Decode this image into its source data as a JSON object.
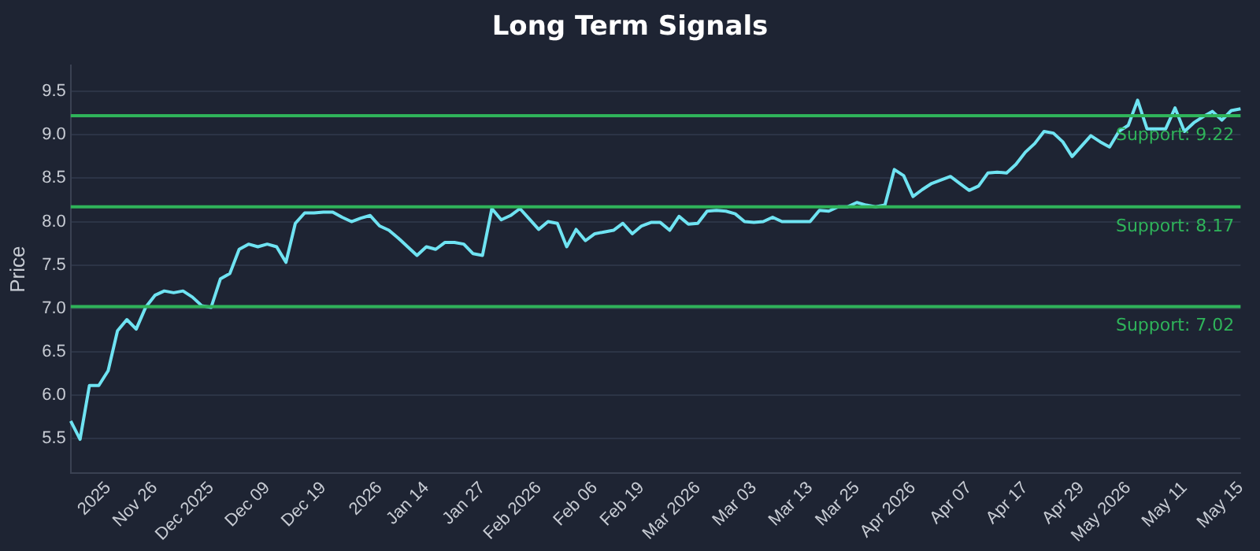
{
  "chart_data": {
    "type": "line",
    "title": "Long Term Signals",
    "ylabel": "Price",
    "categories": [
      null,
      null,
      null,
      null,
      "2025",
      null,
      null,
      null,
      null,
      "Nov 26",
      null,
      null,
      null,
      null,
      null,
      "Dec 2025",
      null,
      null,
      null,
      null,
      null,
      "Dec 09",
      null,
      null,
      null,
      null,
      null,
      "Dec 19",
      null,
      null,
      null,
      null,
      null,
      "2026",
      null,
      null,
      null,
      null,
      "Jan 14",
      null,
      null,
      null,
      null,
      null,
      "Jan 27",
      null,
      null,
      null,
      null,
      null,
      "Feb 2026",
      null,
      null,
      null,
      null,
      null,
      "Feb 06",
      null,
      null,
      null,
      null,
      "Feb 19",
      null,
      null,
      null,
      null,
      null,
      "Mar 2026",
      null,
      null,
      null,
      null,
      null,
      "Mar 03",
      null,
      null,
      null,
      null,
      null,
      "Mar 13",
      null,
      null,
      null,
      null,
      "Mar 25",
      null,
      null,
      null,
      null,
      null,
      "Apr 2026",
      null,
      null,
      null,
      null,
      null,
      "Apr 07",
      null,
      null,
      null,
      null,
      null,
      "Apr 17",
      null,
      null,
      null,
      null,
      null,
      "Apr 29",
      null,
      null,
      null,
      null,
      "May 2026",
      null,
      null,
      null,
      null,
      null,
      "May 11",
      null,
      null,
      null,
      null,
      null,
      "May 15"
    ],
    "series": [
      {
        "color": "#6fe3f2",
        "values": [
          5.7,
          5.49,
          6.11,
          6.11,
          6.28,
          6.74,
          6.87,
          6.76,
          7.01,
          7.15,
          7.2,
          7.18,
          7.2,
          7.13,
          7.03,
          7.01,
          7.34,
          7.4,
          7.68,
          7.74,
          7.71,
          7.74,
          7.71,
          7.53,
          7.98,
          8.1,
          8.1,
          8.11,
          8.11,
          8.05,
          8.0,
          8.04,
          8.07,
          7.95,
          7.9,
          7.81,
          7.71,
          7.61,
          7.71,
          7.68,
          7.76,
          7.76,
          7.74,
          7.63,
          7.61,
          8.15,
          8.02,
          8.07,
          8.15,
          8.03,
          7.91,
          8.0,
          7.98,
          7.71,
          7.91,
          7.78,
          7.86,
          7.88,
          7.9,
          7.98,
          7.86,
          7.95,
          7.99,
          7.99,
          7.9,
          8.06,
          7.97,
          7.98,
          8.12,
          8.13,
          8.12,
          8.09,
          8.0,
          7.99,
          8.0,
          8.05,
          8.0,
          8.0,
          8.0,
          8.0,
          8.13,
          8.12,
          8.17,
          8.17,
          8.22,
          8.19,
          8.17,
          8.19,
          8.6,
          8.53,
          8.29,
          8.37,
          8.44,
          8.48,
          8.52,
          8.44,
          8.36,
          8.41,
          8.56,
          8.57,
          8.56,
          8.66,
          8.8,
          8.9,
          9.04,
          9.02,
          8.92,
          8.75,
          8.87,
          8.99,
          8.92,
          8.86,
          9.04,
          9.11,
          9.4,
          9.07,
          9.07,
          9.07,
          9.31,
          9.04,
          9.14,
          9.21,
          9.27,
          9.17,
          9.28,
          9.3
        ]
      }
    ],
    "ylim": [
      5.1,
      9.8
    ],
    "yticks": [
      5.5,
      {
        "value": 6,
        "label": "6.0"
      },
      6.5,
      {
        "value": 7,
        "label": "7.0"
      },
      7.5,
      {
        "value": 8,
        "label": "8.0"
      },
      8.5,
      {
        "value": 9,
        "label": "9.0"
      },
      9.5
    ],
    "grid": "y",
    "ref_lines": [
      {
        "axis": "y",
        "value": 9.22,
        "label": "Support: 9.22",
        "color": "#2fb35a"
      },
      {
        "axis": "y",
        "value": 8.17,
        "label": "Support: 8.17",
        "color": "#2fb35a"
      },
      {
        "axis": "y",
        "value": 7.02,
        "label": "Support: 7.02",
        "color": "#2fb35a"
      }
    ],
    "legend": false,
    "marker": "none",
    "line_style": "solid"
  }
}
